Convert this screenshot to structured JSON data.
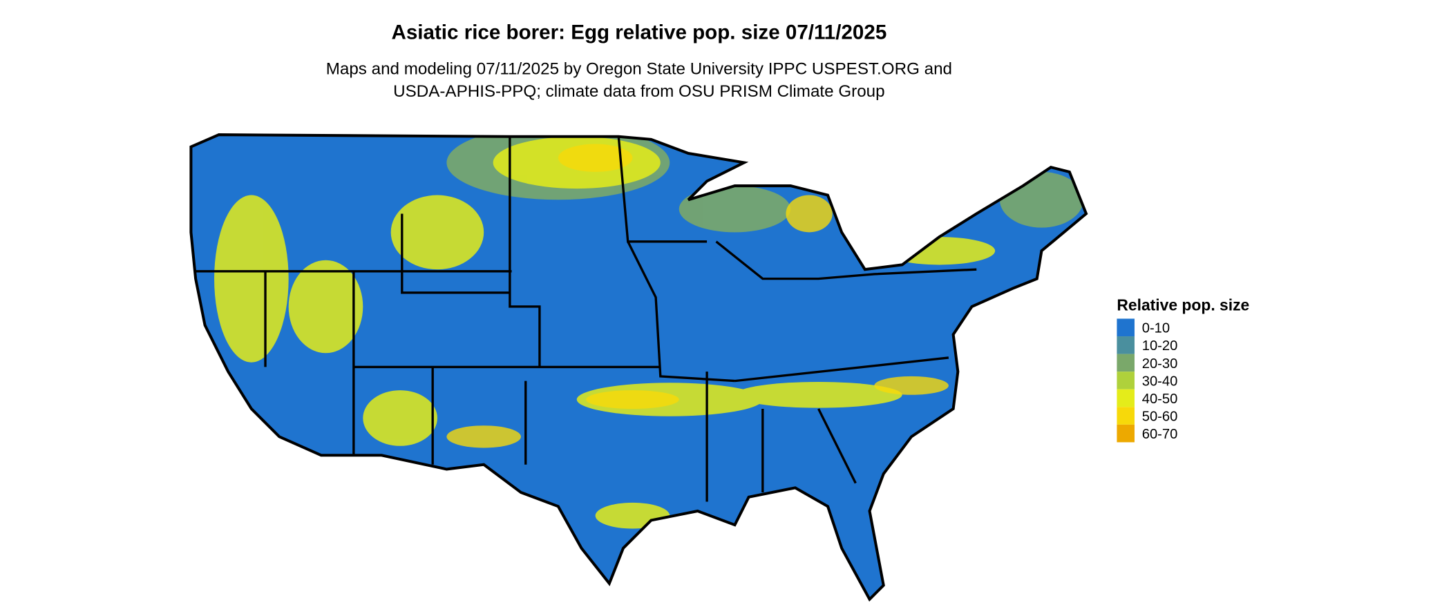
{
  "header": {
    "title": "Asiatic rice borer: Egg relative pop. size 07/11/2025",
    "subtitle_lines": [
      "Maps and modeling 07/11/2025 by Oregon State University IPPC USPEST.ORG and",
      "USDA-APHIS-PPQ; climate data from OSU PRISM Climate Group"
    ]
  },
  "legend": {
    "title": "Relative pop. size",
    "items": [
      {
        "label": "0-10",
        "color": "#1f74cf"
      },
      {
        "label": "10-20",
        "color": "#4a8f9e"
      },
      {
        "label": "20-30",
        "color": "#7aa86a"
      },
      {
        "label": "30-40",
        "color": "#afd13b"
      },
      {
        "label": "40-50",
        "color": "#e4ec1a"
      },
      {
        "label": "50-60",
        "color": "#f7d90a"
      },
      {
        "label": "60-70",
        "color": "#eda900"
      }
    ]
  }
}
